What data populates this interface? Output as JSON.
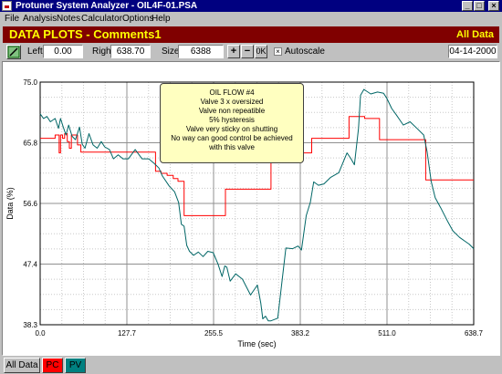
{
  "window": {
    "title": "Protuner System Analyzer - OIL4F-01.PSA",
    "minimize_glyph": "_",
    "maximize_glyph": "□",
    "close_glyph": "×"
  },
  "menu": [
    "File",
    "Analysis",
    "Notes",
    "Calculator",
    "Options",
    "Help"
  ],
  "header": {
    "title": "DATA PLOTS - Comments1",
    "right_label": "All Data"
  },
  "toolbar": {
    "left_label": "Left",
    "left_value": "0.00",
    "right_label": "Right",
    "right_value": "638.70",
    "size_label": "Size",
    "size_value": "6388",
    "zoom_in_glyph": "+",
    "zoom_out_glyph": "−",
    "zoom_reset_label": "0K",
    "autoscale_label": "Autoscale",
    "autoscale_checked": true,
    "check_glyph": "×",
    "date": "04-14-2000"
  },
  "note": {
    "lines": [
      "OIL FLOW #4",
      "Valve 3 x oversized",
      "Valve non repeatible",
      "5% hysteresis",
      "Valve very sticky on shutting",
      "No way can good control be achieved",
      "with this valve"
    ]
  },
  "tabs": [
    {
      "label": "All Data",
      "color": "#c0c0c0"
    },
    {
      "label": "PC",
      "color": "#ff0000"
    },
    {
      "label": "PV",
      "color": "#008080"
    }
  ],
  "colors": {
    "pc": "#ff0000",
    "pv": "#006666",
    "grid": "#c8c8c8"
  },
  "chart_data": {
    "type": "line",
    "xlabel": "Time (sec)",
    "ylabel": "Data (%)",
    "xlim": [
      0.0,
      638.7
    ],
    "ylim": [
      38.3,
      75.0
    ],
    "xticks": [
      "0.0",
      "127.7",
      "255.5",
      "383.2",
      "511.0",
      "638.7"
    ],
    "yticks": [
      "38.3",
      "47.4",
      "56.6",
      "65.8",
      "75.0"
    ],
    "grid": true,
    "series": [
      {
        "id": "PC",
        "x": [
          0,
          22,
          22,
          28,
          28,
          30,
          30,
          33,
          33,
          36,
          36,
          40,
          40,
          43,
          43,
          46,
          46,
          55,
          55,
          60,
          60,
          170,
          170,
          178,
          178,
          187,
          187,
          196,
          196,
          203,
          203,
          212,
          212,
          273,
          273,
          340,
          340,
          400,
          400,
          455,
          455,
          478,
          478,
          500,
          500,
          568,
          568,
          638.7
        ],
        "y": [
          66.5,
          66.5,
          67.0,
          67.0,
          64.3,
          64.3,
          67.0,
          67.0,
          66.5,
          66.5,
          67.2,
          67.2,
          66.0,
          66.0,
          65.0,
          65.0,
          67.0,
          67.0,
          65.5,
          65.5,
          64.4,
          64.4,
          61.5,
          61.5,
          61.2,
          61.2,
          60.9,
          60.9,
          60.4,
          60.4,
          60.0,
          60.0,
          54.8,
          54.8,
          58.8,
          58.8,
          64.3,
          64.3,
          66.5,
          66.5,
          69.8,
          69.8,
          69.5,
          69.5,
          66.3,
          66.3,
          60.2,
          60.2
        ]
      },
      {
        "id": "PV",
        "x": [
          0,
          5,
          10,
          15,
          22,
          27,
          30,
          34,
          38,
          42,
          47,
          52,
          58,
          62,
          66,
          72,
          78,
          84,
          90,
          95,
          102,
          108,
          115,
          122,
          130,
          140,
          150,
          160,
          168,
          175,
          180,
          190,
          198,
          204,
          208,
          212,
          216,
          220,
          226,
          233,
          240,
          247,
          255,
          262,
          268,
          272,
          275,
          280,
          288,
          298,
          310,
          320,
          325,
          328,
          332,
          336,
          340,
          350,
          362,
          372,
          380,
          385,
          392,
          398,
          403,
          410,
          418,
          428,
          440,
          452,
          458,
          463,
          469,
          472,
          477,
          487,
          497,
          506,
          511,
          518,
          525,
          535,
          545,
          555,
          565,
          570,
          576,
          582,
          590,
          600,
          608,
          618,
          625,
          632,
          638.7
        ],
        "y": [
          70.2,
          69.5,
          69.8,
          69.0,
          69.5,
          68.0,
          69.5,
          68.2,
          67.0,
          68.5,
          66.8,
          66.3,
          68.2,
          65.6,
          65.0,
          67.2,
          65.5,
          65.0,
          66.0,
          65.2,
          64.8,
          63.4,
          64.0,
          63.4,
          63.4,
          64.8,
          63.4,
          63.4,
          62.7,
          62.0,
          60.8,
          59.3,
          58.4,
          56.8,
          53.5,
          53.2,
          50.3,
          49.4,
          48.8,
          49.3,
          48.6,
          49.4,
          49.2,
          47.5,
          45.6,
          47.2,
          47.0,
          44.9,
          46.0,
          45.2,
          42.8,
          44.3,
          41.6,
          39.2,
          39.6,
          38.9,
          38.9,
          39.3,
          49.9,
          49.8,
          50.2,
          49.6,
          54.8,
          56.8,
          59.9,
          59.4,
          59.6,
          60.6,
          61.3,
          64.3,
          63.4,
          62.5,
          68.0,
          73.0,
          73.9,
          73.2,
          73.5,
          73.3,
          72.5,
          71.0,
          70.0,
          68.5,
          69.0,
          68.0,
          67.0,
          64.5,
          60.0,
          57.5,
          56.0,
          54.0,
          52.5,
          51.5,
          51.0,
          50.5,
          49.8
        ]
      }
    ]
  }
}
